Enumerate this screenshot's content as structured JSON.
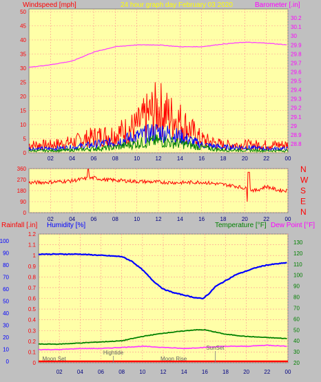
{
  "chart_data": [
    {
      "type": "line",
      "title": "24 hour graph day   February 03 2020",
      "ylabel_left": "Windspeed [mph]",
      "ylabel_right": "Barometer [.in]",
      "x_ticks": [
        "02",
        "04",
        "06",
        "08",
        "10",
        "12",
        "14",
        "16",
        "18",
        "20",
        "22",
        "00"
      ],
      "ylim_left": [
        0,
        50
      ],
      "y_ticks_left": [
        "0",
        "5",
        "10",
        "15",
        "20",
        "25",
        "30",
        "35",
        "40",
        "45",
        "50"
      ],
      "ylim_right": [
        28.7,
        30.3
      ],
      "y_ticks_right": [
        "28.8",
        "28.9",
        "29",
        "29.1",
        "29.2",
        "29.3",
        "29.4",
        "29.5",
        "29.6",
        "29.7",
        "29.8",
        "29.9",
        "30",
        "30.1",
        "30.2"
      ],
      "grid": true,
      "colors": {
        "gust": "#ff0000",
        "average": "#0000ff",
        "wind_low": "#008000",
        "barometer": "#ff40ff"
      },
      "series": [
        {
          "x": [
            0,
            2,
            4,
            6,
            8,
            10,
            12,
            14,
            16,
            18,
            20,
            22,
            24
          ],
          "values": [
            29.65,
            29.68,
            29.72,
            29.82,
            29.88,
            29.9,
            29.9,
            29.88,
            29.88,
            29.91,
            29.93,
            29.92,
            29.9
          ]
        },
        {
          "x": [
            0,
            2,
            4,
            6,
            8,
            10,
            11,
            12,
            13,
            14,
            16,
            18,
            20,
            22,
            24
          ],
          "values": [
            3,
            3,
            4,
            6,
            7,
            10,
            14,
            17,
            14,
            12,
            5,
            3,
            3,
            3,
            3
          ]
        },
        {
          "x": [
            0,
            2,
            4,
            6,
            8,
            10,
            12,
            14,
            16,
            18,
            20,
            22,
            24
          ],
          "values": [
            1.5,
            1.5,
            2,
            3,
            4,
            6,
            8,
            6,
            3,
            2,
            2,
            1.5,
            1.5
          ]
        },
        {
          "x": [
            0,
            2,
            4,
            6,
            8,
            10,
            12,
            14,
            16,
            18,
            20,
            22,
            24
          ],
          "values": [
            0.8,
            0.8,
            1,
            1.5,
            2,
            3.5,
            4.5,
            3.5,
            2,
            1,
            1,
            0.8,
            0.8
          ]
        }
      ]
    },
    {
      "type": "line",
      "x_ticks": [
        "02",
        "04",
        "06",
        "08",
        "10",
        "12",
        "14",
        "16",
        "18",
        "20",
        "22",
        "00"
      ],
      "ylim": [
        0,
        360
      ],
      "y_ticks": [
        "0",
        "90",
        "180",
        "270",
        "360"
      ],
      "compass": [
        "N",
        "W",
        "S",
        "E",
        "N"
      ],
      "grid": true,
      "colors": {
        "direction": "#ff0000"
      },
      "series": [
        {
          "x": [
            0,
            2,
            4,
            5,
            6,
            7,
            8,
            10,
            12,
            14,
            16,
            18,
            19,
            20,
            21,
            22,
            23,
            24
          ],
          "values": [
            245,
            250,
            260,
            275,
            285,
            270,
            265,
            255,
            250,
            245,
            250,
            230,
            220,
            200,
            180,
            215,
            185,
            180
          ]
        }
      ]
    },
    {
      "type": "line",
      "ylabel_left_1": "Rainfall [.in]",
      "ylabel_left_2": "Humidity [%]",
      "ylabel_right_1": "Temperature [°F]",
      "ylabel_right_2": "Dew Point [°F]",
      "x_ticks": [
        "02",
        "04",
        "06",
        "08",
        "10",
        "12",
        "14",
        "16",
        "18",
        "20",
        "22",
        "00"
      ],
      "ylim_humidity": [
        0,
        100
      ],
      "y_ticks_humidity": [
        "0",
        "10",
        "20",
        "30",
        "40",
        "50",
        "60",
        "70",
        "80",
        "90",
        "100"
      ],
      "ylim_rain": [
        0,
        1.2
      ],
      "y_ticks_rain": [
        "0",
        "0.1",
        "0.2",
        "0.3",
        "0.4",
        "0.5",
        "0.6",
        "0.7",
        "0.8",
        "0.9",
        "1",
        "1.1",
        "1.2"
      ],
      "ylim_temp": [
        20,
        135
      ],
      "y_ticks_temp": [
        "20",
        "30",
        "40",
        "50",
        "60",
        "70",
        "80",
        "90",
        "100",
        "110",
        "120",
        "130"
      ],
      "grid": true,
      "annotations": [
        "Moon Set",
        "Hightide",
        "Moon Rise",
        "SunSet"
      ],
      "colors": {
        "humidity": "#0000ff",
        "temperature": "#008000",
        "dewpoint": "#ff40ff",
        "rainfall": "#ff0000"
      },
      "series": [
        {
          "x": [
            0,
            2,
            4,
            6,
            8,
            9,
            10,
            11,
            12,
            13,
            14,
            15,
            15.8,
            16.5,
            17,
            18,
            19,
            20,
            21,
            22,
            23,
            24
          ],
          "values": [
            89,
            89,
            89,
            88,
            87,
            83,
            76,
            67,
            60,
            57,
            55,
            53,
            52,
            57,
            62,
            67,
            72,
            75,
            78,
            80,
            81,
            82
          ]
        },
        {
          "x": [
            0,
            2,
            4,
            6,
            8,
            10,
            12,
            14,
            15,
            16,
            17,
            18,
            20,
            22,
            24
          ],
          "values": [
            37,
            37,
            38,
            39,
            40,
            44,
            47,
            49,
            50,
            50,
            48,
            46,
            44,
            43,
            42
          ]
        },
        {
          "x": [
            0,
            2,
            4,
            6,
            8,
            10,
            12,
            14,
            16,
            18,
            20,
            22,
            24
          ],
          "values": [
            32,
            32,
            33,
            33,
            34,
            35,
            34,
            33,
            34,
            35,
            35,
            36,
            35
          ]
        },
        {
          "x": [
            0,
            24
          ],
          "values": [
            0,
            0
          ]
        }
      ]
    }
  ]
}
